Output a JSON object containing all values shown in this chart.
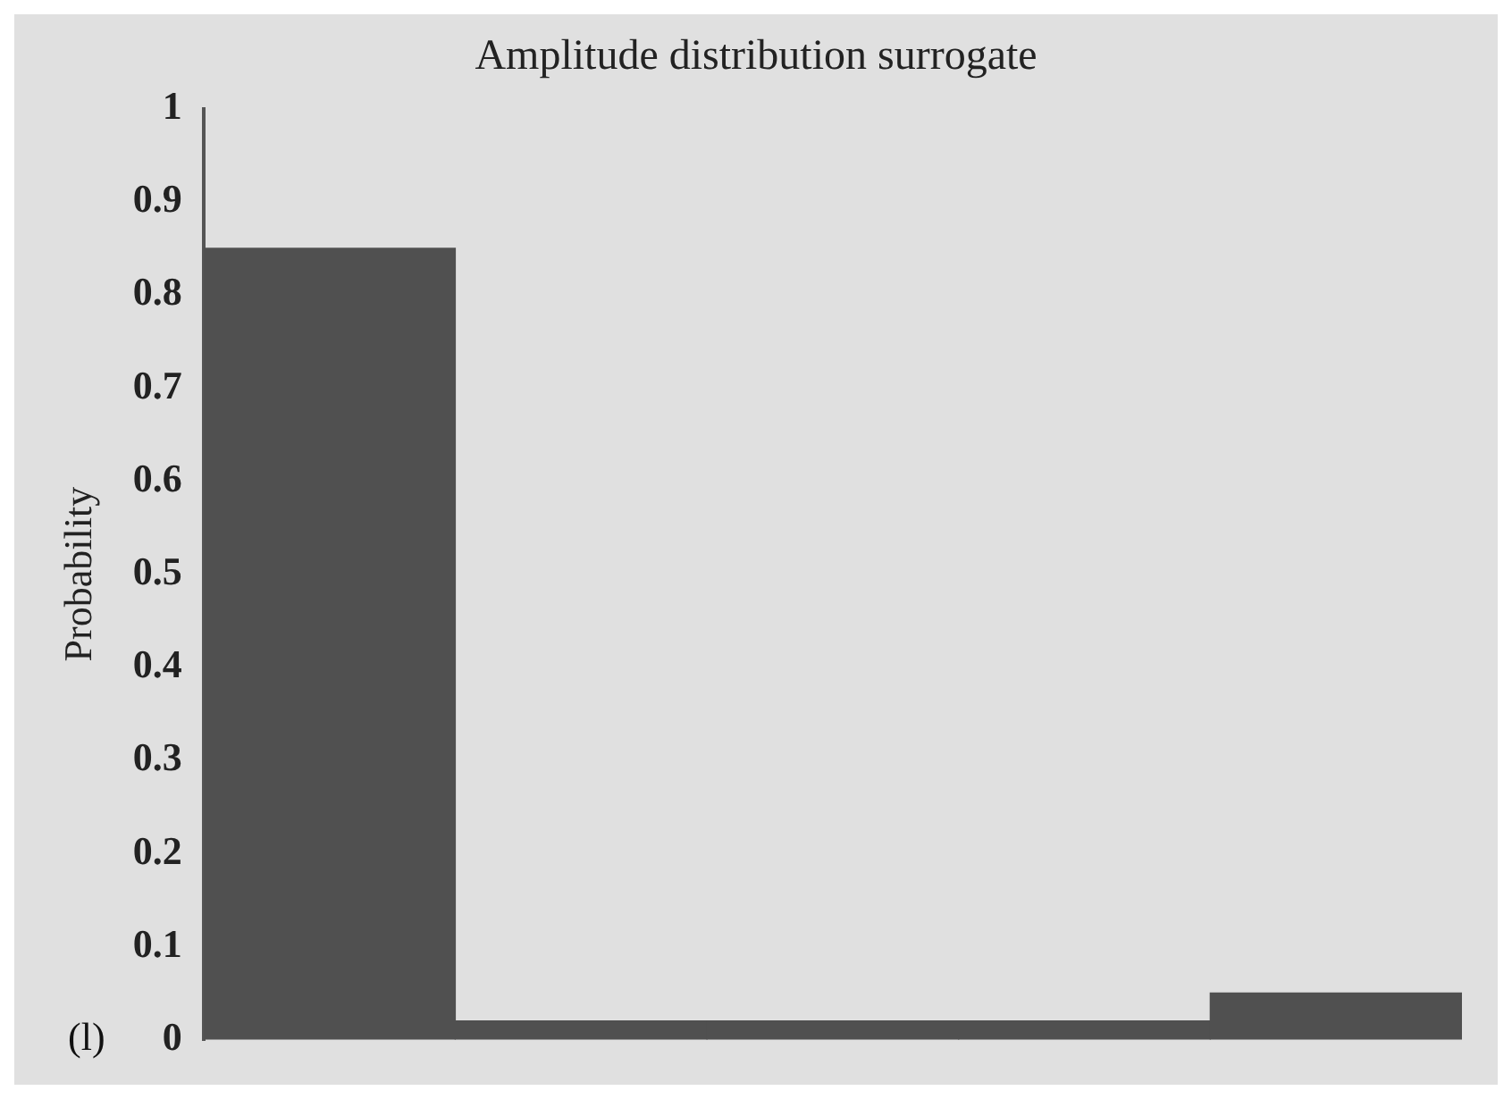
{
  "chart_data": {
    "type": "bar",
    "title": "Amplitude distribution surrogate",
    "ylabel": "Probability",
    "categories": [
      null,
      null,
      null,
      null,
      null
    ],
    "values": [
      0.85,
      0.02,
      0.02,
      0.02,
      0.05
    ],
    "color": "#505050",
    "ylim": [
      0,
      1
    ],
    "yticks": [
      0,
      0.1,
      0.2,
      0.3,
      0.4,
      0.5,
      0.6,
      0.7,
      0.8,
      0.9,
      1
    ],
    "grid": false,
    "annotations": [
      "(l)"
    ]
  }
}
